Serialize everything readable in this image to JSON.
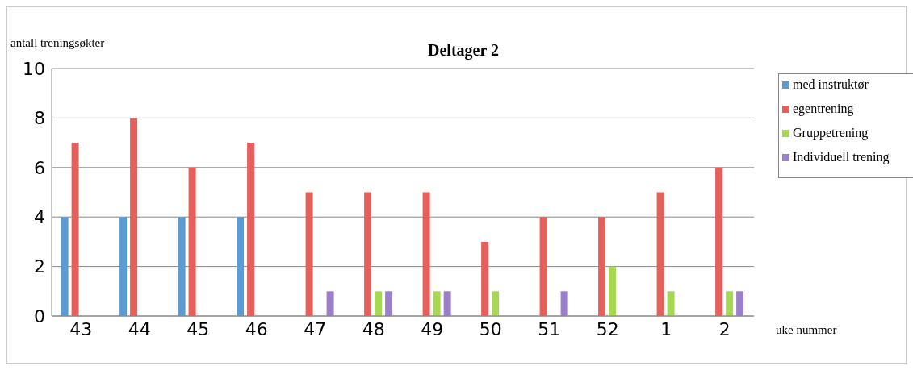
{
  "chart_data": {
    "type": "bar",
    "title": "Deltager 2",
    "ylabel": "antall treningsøkter",
    "xlabel": "uke nummer",
    "categories": [
      "43",
      "44",
      "45",
      "46",
      "47",
      "48",
      "49",
      "50",
      "51",
      "52",
      "1",
      "2"
    ],
    "series": [
      {
        "name": "med instruktør",
        "color": "#5b9bd5",
        "values": [
          4,
          4,
          4,
          4,
          0,
          0,
          0,
          0,
          0,
          0,
          0,
          0
        ]
      },
      {
        "name": "egentrening",
        "color": "#e5605a",
        "values": [
          7,
          8,
          6,
          7,
          5,
          5,
          5,
          3,
          4,
          4,
          5,
          6
        ]
      },
      {
        "name": "Gruppetrening",
        "color": "#a6d854",
        "values": [
          0,
          0,
          0,
          0,
          0,
          1,
          1,
          1,
          0,
          2,
          1,
          1
        ]
      },
      {
        "name": "Individuell trening",
        "color": "#9b7fc9",
        "values": [
          0,
          0,
          0,
          0,
          1,
          1,
          1,
          0,
          1,
          0,
          0,
          1
        ]
      }
    ],
    "ylim": [
      0,
      10
    ],
    "yticks": [
      0,
      2,
      4,
      6,
      8,
      10
    ],
    "grid": "y",
    "legend": "right"
  }
}
